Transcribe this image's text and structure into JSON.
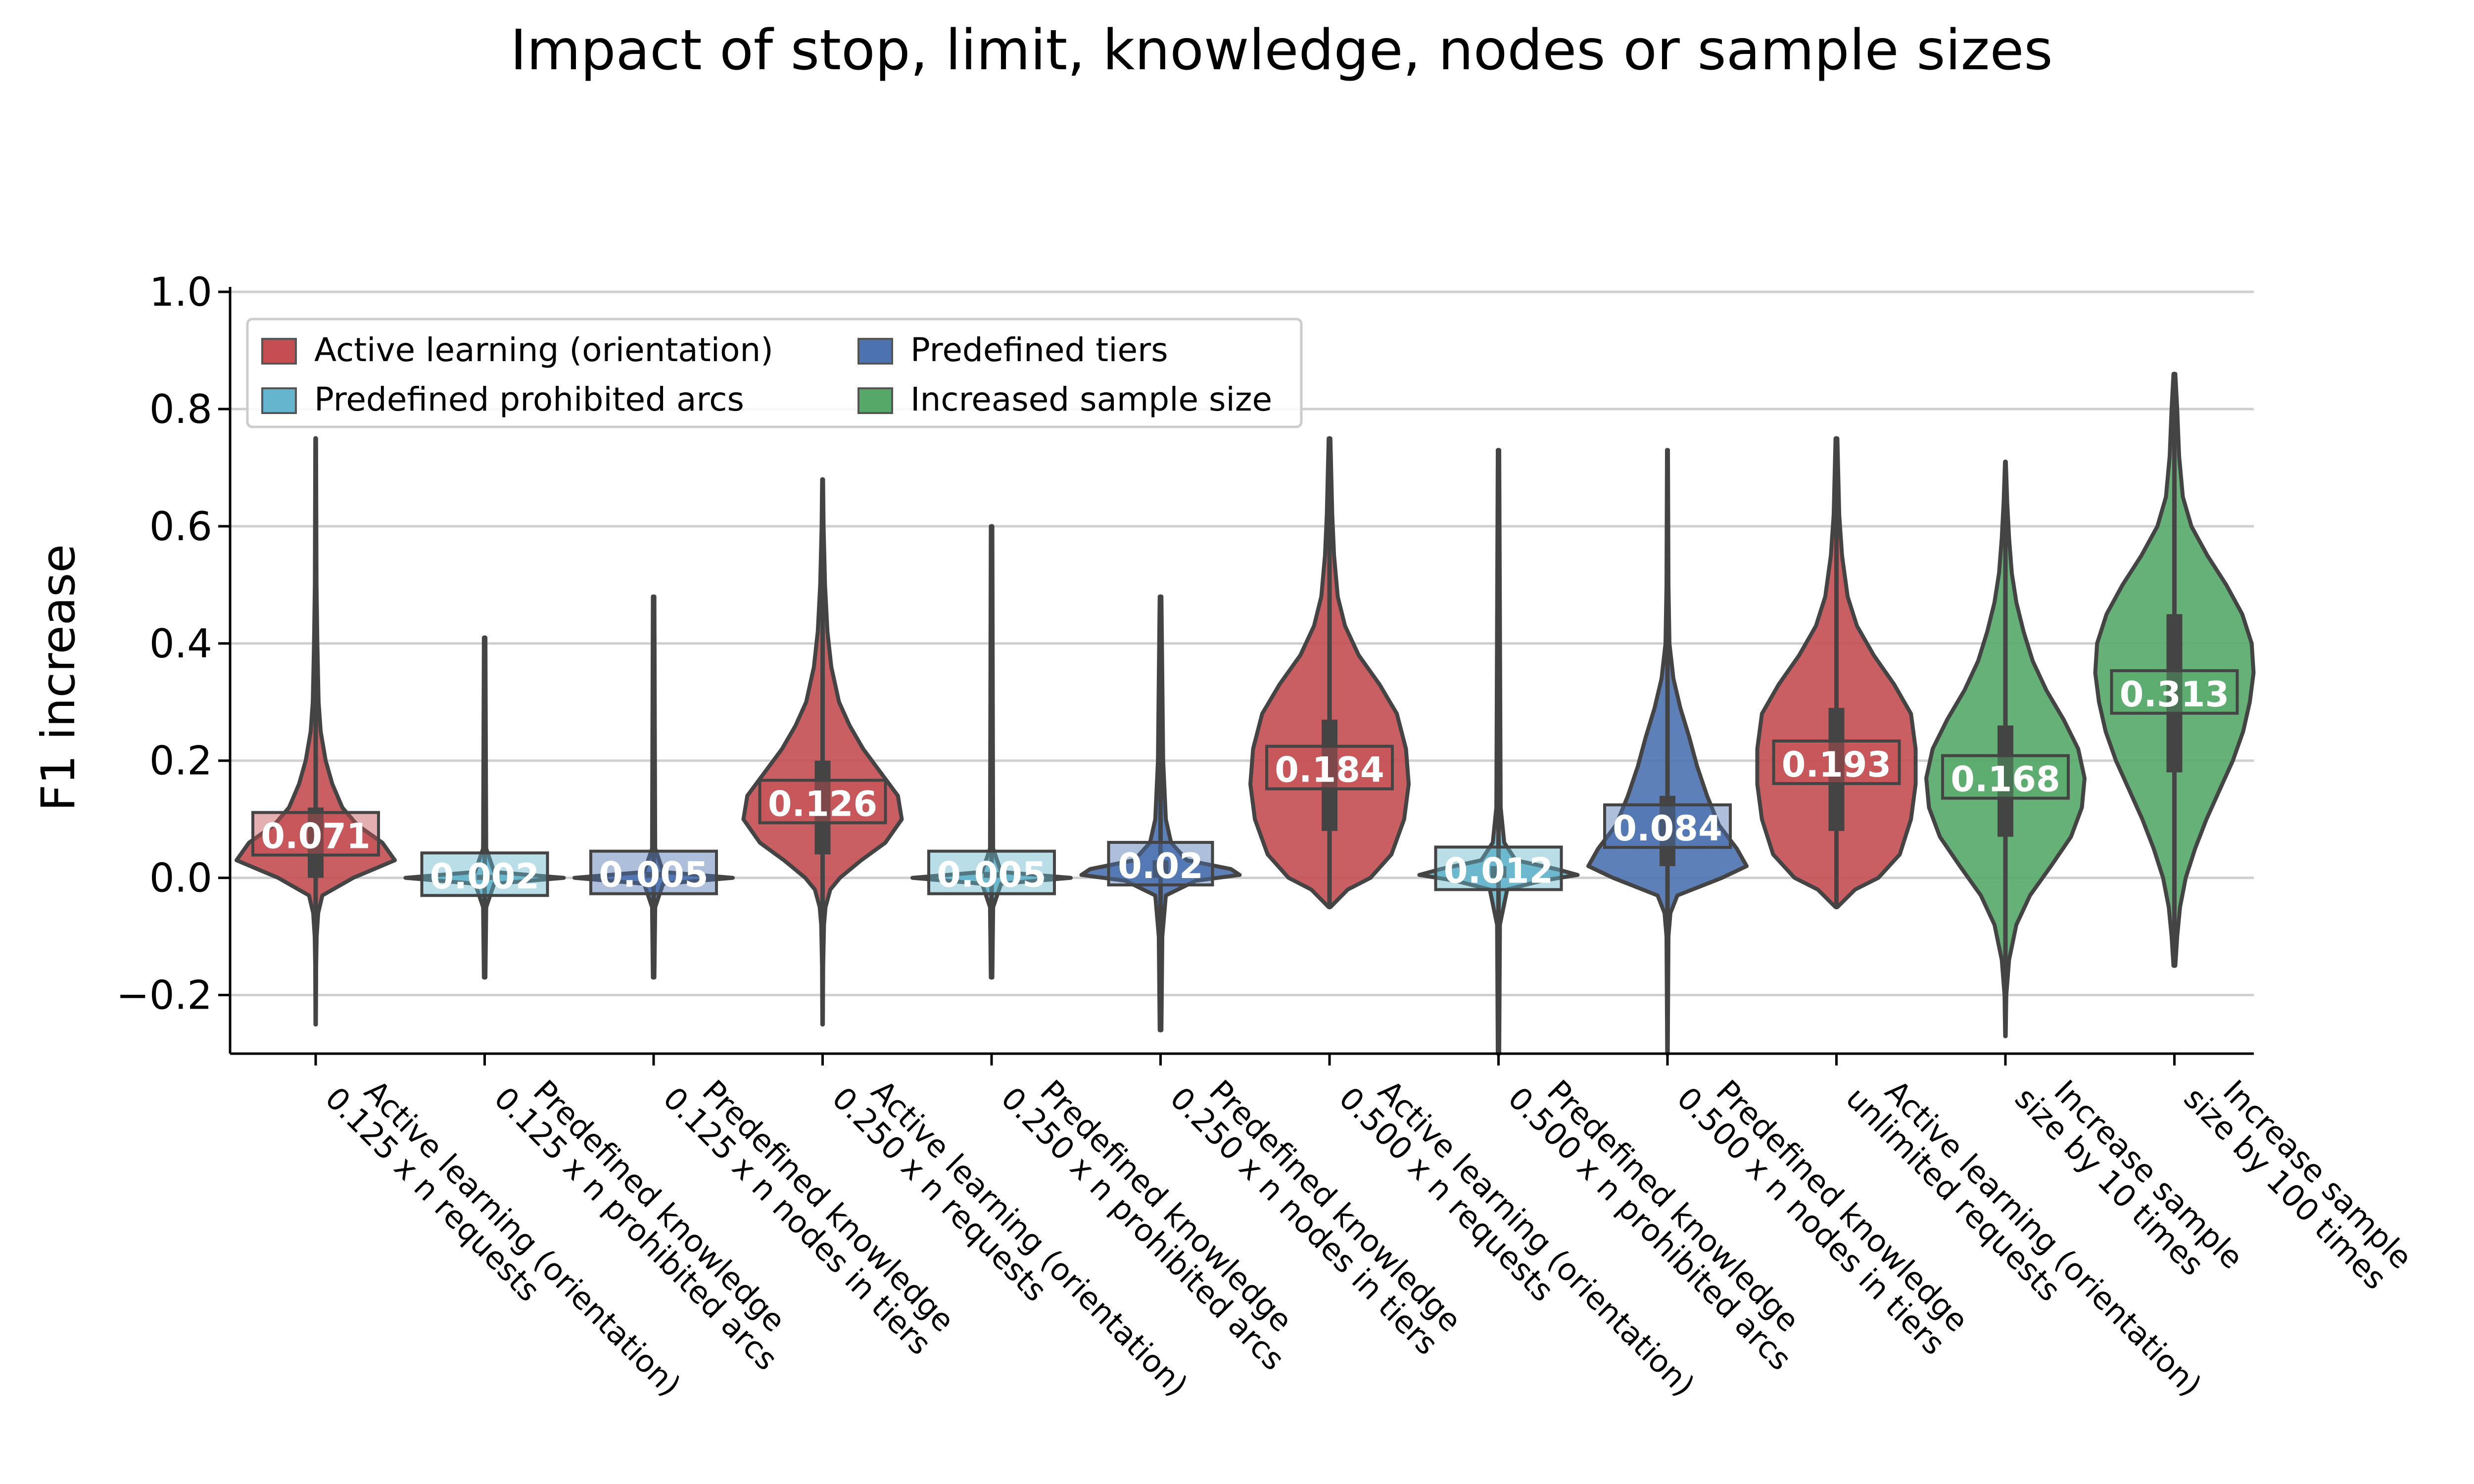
{
  "chart_data": {
    "type": "violin",
    "title": "Impact of stop, limit, knowledge, nodes or sample sizes",
    "xlabel": "",
    "ylabel": "F1 increase",
    "ylim": [
      -0.3,
      1.0
    ],
    "yticks": [
      -0.2,
      0.0,
      0.2,
      0.4,
      0.6,
      0.8,
      1.0
    ],
    "ytick_labels": [
      "−0.2",
      "0.0",
      "0.2",
      "0.4",
      "0.6",
      "0.8",
      "1.0"
    ],
    "grid": "horizontal",
    "legend_position": "top-left",
    "legend": [
      {
        "name": "Active learning (orientation)",
        "color": "#c44e52"
      },
      {
        "name": "Predefined tiers",
        "color": "#4c72b0"
      },
      {
        "name": "Predefined prohibited arcs",
        "color": "#64b5cd"
      },
      {
        "name": "Increased sample size",
        "color": "#55a868"
      }
    ],
    "categories": [
      {
        "label_lines": [
          "Active learning (orientation)",
          "0.125 x n requests"
        ],
        "group": "Active learning (orientation)",
        "color": "#c44e52",
        "median": 0.071,
        "median_label": "0.071",
        "min": -0.25,
        "max": 0.75,
        "q1": 0.0,
        "q3": 0.12,
        "shape": [
          [
            -0.25,
            0.003
          ],
          [
            -0.15,
            0.006
          ],
          [
            -0.1,
            0.012
          ],
          [
            -0.06,
            0.03
          ],
          [
            -0.03,
            0.08
          ],
          [
            0.0,
            0.45
          ],
          [
            0.03,
            0.95
          ],
          [
            0.06,
            0.8
          ],
          [
            0.09,
            0.5
          ],
          [
            0.12,
            0.32
          ],
          [
            0.16,
            0.2
          ],
          [
            0.2,
            0.12
          ],
          [
            0.25,
            0.06
          ],
          [
            0.3,
            0.035
          ],
          [
            0.4,
            0.02
          ],
          [
            0.5,
            0.01
          ],
          [
            0.75,
            0.005
          ]
        ]
      },
      {
        "label_lines": [
          "Predefined knowledge",
          "0.125 x n prohibited arcs"
        ],
        "group": "Predefined prohibited arcs",
        "color": "#64b5cd",
        "median": 0.002,
        "median_label": "0.002",
        "min": -0.17,
        "max": 0.41,
        "q1": 0.0,
        "q3": 0.005,
        "shape": [
          [
            -0.17,
            0.005
          ],
          [
            -0.05,
            0.01
          ],
          [
            -0.01,
            0.06
          ],
          [
            0.0,
            0.5
          ],
          [
            0.01,
            0.06
          ],
          [
            0.05,
            0.01
          ],
          [
            0.41,
            0.005
          ]
        ]
      },
      {
        "label_lines": [
          "Predefined knowledge",
          "0.125 x n nodes in tiers"
        ],
        "group": "Predefined tiers",
        "color": "#4c72b0",
        "median": 0.005,
        "median_label": "0.005",
        "min": -0.17,
        "max": 0.48,
        "q1": 0.0,
        "q3": 0.01,
        "shape": [
          [
            -0.17,
            0.005
          ],
          [
            -0.05,
            0.01
          ],
          [
            -0.01,
            0.06
          ],
          [
            0.0,
            0.5
          ],
          [
            0.01,
            0.06
          ],
          [
            0.05,
            0.01
          ],
          [
            0.48,
            0.005
          ]
        ]
      },
      {
        "label_lines": [
          "Active learning (orientation)",
          "0.250 x n requests"
        ],
        "group": "Active learning (orientation)",
        "color": "#c44e52",
        "median": 0.126,
        "median_label": "0.126",
        "min": -0.25,
        "max": 0.68,
        "q1": 0.04,
        "q3": 0.2,
        "shape": [
          [
            -0.25,
            0.003
          ],
          [
            -0.15,
            0.006
          ],
          [
            -0.08,
            0.015
          ],
          [
            -0.05,
            0.03
          ],
          [
            -0.02,
            0.08
          ],
          [
            0.0,
            0.18
          ],
          [
            0.03,
            0.4
          ],
          [
            0.06,
            0.65
          ],
          [
            0.1,
            0.82
          ],
          [
            0.14,
            0.78
          ],
          [
            0.18,
            0.6
          ],
          [
            0.22,
            0.42
          ],
          [
            0.26,
            0.28
          ],
          [
            0.3,
            0.17
          ],
          [
            0.36,
            0.09
          ],
          [
            0.42,
            0.05
          ],
          [
            0.5,
            0.025
          ],
          [
            0.6,
            0.01
          ],
          [
            0.68,
            0.005
          ]
        ]
      },
      {
        "label_lines": [
          "Predefined knowledge",
          "0.250 x n prohibited arcs"
        ],
        "group": "Predefined prohibited arcs",
        "color": "#64b5cd",
        "median": 0.005,
        "median_label": "0.005",
        "min": -0.17,
        "max": 0.6,
        "q1": 0.0,
        "q3": 0.01,
        "shape": [
          [
            -0.17,
            0.005
          ],
          [
            -0.05,
            0.01
          ],
          [
            -0.01,
            0.06
          ],
          [
            0.0,
            0.5
          ],
          [
            0.01,
            0.06
          ],
          [
            0.05,
            0.01
          ],
          [
            0.6,
            0.005
          ]
        ]
      },
      {
        "label_lines": [
          "Predefined knowledge",
          "0.250 x n nodes in tiers"
        ],
        "group": "Predefined tiers",
        "color": "#4c72b0",
        "median": 0.02,
        "median_label": "0.02",
        "min": -0.26,
        "max": 0.48,
        "q1": 0.0,
        "q3": 0.03,
        "shape": [
          [
            -0.26,
            0.005
          ],
          [
            -0.1,
            0.01
          ],
          [
            -0.03,
            0.03
          ],
          [
            -0.005,
            0.2
          ],
          [
            0.005,
            0.45
          ],
          [
            0.015,
            0.4
          ],
          [
            0.03,
            0.15
          ],
          [
            0.06,
            0.06
          ],
          [
            0.1,
            0.03
          ],
          [
            0.2,
            0.015
          ],
          [
            0.48,
            0.005
          ]
        ]
      },
      {
        "label_lines": [
          "Active learning (orientation)",
          "0.500 x n requests"
        ],
        "group": "Active learning (orientation)",
        "color": "#c44e52",
        "median": 0.184,
        "median_label": "0.184",
        "min": -0.05,
        "max": 0.75,
        "q1": 0.08,
        "q3": 0.27,
        "shape": [
          [
            -0.05,
            0.01
          ],
          [
            -0.02,
            0.2
          ],
          [
            0.0,
            0.45
          ],
          [
            0.04,
            0.68
          ],
          [
            0.1,
            0.82
          ],
          [
            0.16,
            0.87
          ],
          [
            0.22,
            0.84
          ],
          [
            0.28,
            0.74
          ],
          [
            0.33,
            0.55
          ],
          [
            0.38,
            0.32
          ],
          [
            0.43,
            0.17
          ],
          [
            0.48,
            0.09
          ],
          [
            0.55,
            0.05
          ],
          [
            0.62,
            0.03
          ],
          [
            0.75,
            0.01
          ]
        ]
      },
      {
        "label_lines": [
          "Predefined knowledge",
          "0.500 x n prohibited arcs"
        ],
        "group": "Predefined prohibited arcs",
        "color": "#64b5cd",
        "median": 0.012,
        "median_label": "0.012",
        "min": -0.3,
        "max": 0.73,
        "q1": 0.0,
        "q3": 0.02,
        "shape": [
          [
            -0.3,
            0.005
          ],
          [
            -0.08,
            0.01
          ],
          [
            -0.02,
            0.06
          ],
          [
            -0.005,
            0.3
          ],
          [
            0.005,
            0.55
          ],
          [
            0.015,
            0.4
          ],
          [
            0.03,
            0.12
          ],
          [
            0.06,
            0.04
          ],
          [
            0.12,
            0.015
          ],
          [
            0.73,
            0.005
          ]
        ]
      },
      {
        "label_lines": [
          "Predefined knowledge",
          "0.500 x n nodes in tiers"
        ],
        "group": "Predefined tiers",
        "color": "#4c72b0",
        "median": 0.084,
        "median_label": "0.084",
        "min": -0.3,
        "max": 0.73,
        "q1": 0.02,
        "q3": 0.14,
        "shape": [
          [
            -0.3,
            0.003
          ],
          [
            -0.1,
            0.01
          ],
          [
            -0.06,
            0.03
          ],
          [
            -0.03,
            0.1
          ],
          [
            0.0,
            0.55
          ],
          [
            0.02,
            0.8
          ],
          [
            0.05,
            0.7
          ],
          [
            0.09,
            0.52
          ],
          [
            0.14,
            0.4
          ],
          [
            0.19,
            0.3
          ],
          [
            0.24,
            0.22
          ],
          [
            0.29,
            0.13
          ],
          [
            0.34,
            0.06
          ],
          [
            0.4,
            0.02
          ],
          [
            0.5,
            0.01
          ],
          [
            0.73,
            0.005
          ]
        ]
      },
      {
        "label_lines": [
          "Active learning (orientation)",
          "unlimited requests"
        ],
        "group": "Active learning (orientation)",
        "color": "#c44e52",
        "median": 0.193,
        "median_label": "0.193",
        "min": -0.05,
        "max": 0.75,
        "q1": 0.08,
        "q3": 0.29,
        "shape": [
          [
            -0.05,
            0.01
          ],
          [
            -0.02,
            0.2
          ],
          [
            0.0,
            0.45
          ],
          [
            0.04,
            0.68
          ],
          [
            0.1,
            0.8
          ],
          [
            0.16,
            0.85
          ],
          [
            0.22,
            0.85
          ],
          [
            0.28,
            0.8
          ],
          [
            0.33,
            0.62
          ],
          [
            0.38,
            0.4
          ],
          [
            0.43,
            0.22
          ],
          [
            0.48,
            0.12
          ],
          [
            0.55,
            0.06
          ],
          [
            0.62,
            0.03
          ],
          [
            0.75,
            0.01
          ]
        ]
      },
      {
        "label_lines": [
          "Increase sample",
          "size by 10 times"
        ],
        "group": "Increased sample size",
        "color": "#55a868",
        "median": 0.168,
        "median_label": "0.168",
        "min": -0.27,
        "max": 0.71,
        "q1": 0.07,
        "q3": 0.26,
        "shape": [
          [
            -0.27,
            0.003
          ],
          [
            -0.2,
            0.01
          ],
          [
            -0.14,
            0.04
          ],
          [
            -0.08,
            0.12
          ],
          [
            -0.03,
            0.27
          ],
          [
            0.02,
            0.5
          ],
          [
            0.07,
            0.72
          ],
          [
            0.12,
            0.84
          ],
          [
            0.17,
            0.87
          ],
          [
            0.22,
            0.8
          ],
          [
            0.27,
            0.64
          ],
          [
            0.32,
            0.45
          ],
          [
            0.37,
            0.3
          ],
          [
            0.42,
            0.2
          ],
          [
            0.47,
            0.12
          ],
          [
            0.52,
            0.07
          ],
          [
            0.58,
            0.04
          ],
          [
            0.64,
            0.02
          ],
          [
            0.71,
            0.005
          ]
        ]
      },
      {
        "label_lines": [
          "Increase sample",
          "size by 100 times"
        ],
        "group": "Increased sample size",
        "color": "#55a868",
        "median": 0.313,
        "median_label": "0.313",
        "min": -0.15,
        "max": 0.86,
        "q1": 0.18,
        "q3": 0.45,
        "shape": [
          [
            -0.15,
            0.01
          ],
          [
            -0.1,
            0.03
          ],
          [
            -0.05,
            0.06
          ],
          [
            0.0,
            0.12
          ],
          [
            0.05,
            0.22
          ],
          [
            0.1,
            0.34
          ],
          [
            0.15,
            0.48
          ],
          [
            0.2,
            0.62
          ],
          [
            0.25,
            0.73
          ],
          [
            0.3,
            0.8
          ],
          [
            0.35,
            0.84
          ],
          [
            0.4,
            0.82
          ],
          [
            0.45,
            0.72
          ],
          [
            0.5,
            0.55
          ],
          [
            0.55,
            0.35
          ],
          [
            0.6,
            0.18
          ],
          [
            0.65,
            0.09
          ],
          [
            0.72,
            0.05
          ],
          [
            0.8,
            0.03
          ],
          [
            0.86,
            0.01
          ]
        ]
      }
    ]
  }
}
